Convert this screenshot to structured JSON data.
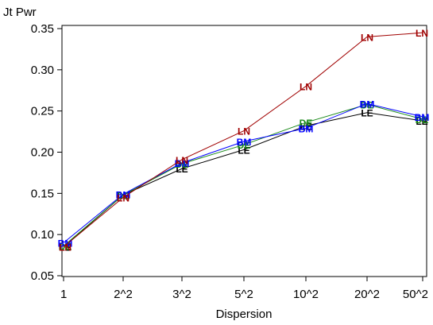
{
  "chart_data": {
    "type": "line",
    "ylabel": "Jt Pwr",
    "xlabel": "Dispersion",
    "categories": [
      "1",
      "2^2",
      "3^2",
      "5^2",
      "10^2",
      "20^2",
      "50^2"
    ],
    "ylim": [
      0.05,
      0.35
    ],
    "yticks": [
      0.05,
      0.1,
      0.15,
      0.2,
      0.25,
      0.3,
      0.35
    ],
    "ytick_labels": [
      "0.05",
      "0.10",
      "0.15",
      "0.20",
      "0.25",
      "0.30",
      "0.35"
    ],
    "grid": false,
    "series": [
      {
        "name": "LE",
        "color": "#000000",
        "values": [
          0.085,
          0.148,
          0.18,
          0.203,
          0.232,
          0.248,
          0.238
        ]
      },
      {
        "name": "DE",
        "color": "#1a8a1a",
        "values": [
          0.086,
          0.148,
          0.186,
          0.209,
          0.236,
          0.258,
          0.24
        ]
      },
      {
        "name": "BM",
        "color": "#0000ff",
        "values": [
          0.09,
          0.149,
          0.187,
          0.213,
          0.229,
          0.259,
          0.243
        ]
      },
      {
        "name": "LN",
        "color": "#a00000",
        "values": [
          0.085,
          0.145,
          0.191,
          0.226,
          0.28,
          0.34,
          0.345
        ]
      }
    ]
  }
}
